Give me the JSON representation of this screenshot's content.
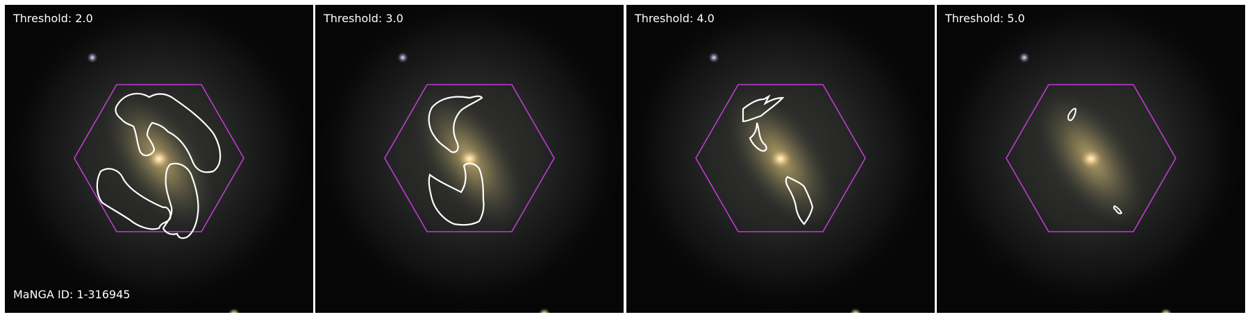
{
  "panels": [
    {
      "threshold_label": "Threshold: 2.0"
    },
    {
      "threshold_label": "Threshold: 3.0"
    },
    {
      "threshold_label": "Threshold: 4.0"
    },
    {
      "threshold_label": "Threshold: 5.0"
    }
  ],
  "galaxy_id_label": "MaNGA ID: 1-316945",
  "colors": {
    "hexagon": "#c23bd4",
    "contour": "#ffffff",
    "background": "#060606"
  }
}
